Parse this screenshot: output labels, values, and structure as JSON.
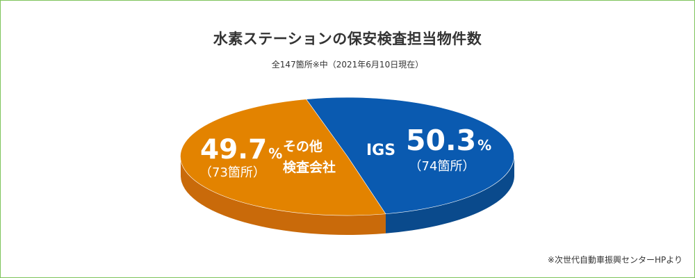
{
  "chart_data": {
    "type": "pie",
    "title": "水素ステーションの保安検査担当物件数",
    "subtitle": "全147箇所※中（2021年6月10日現在）",
    "source": "※次世代自動車振興センターHPより",
    "slices": [
      {
        "label_lines": [
          "その他",
          "検査会社"
        ],
        "percent": 49.7,
        "percent_text": "49.7",
        "unit": "%",
        "count_text": "（73箇所）",
        "count": 73,
        "color": "#e38300",
        "side_color": "#c96a0a"
      },
      {
        "label_lines": [
          "IGS"
        ],
        "percent": 50.3,
        "percent_text": "50.3",
        "unit": "%",
        "count_text": "（74箇所）",
        "count": 74,
        "color": "#0a5ab0",
        "side_color": "#0a4a8c"
      }
    ]
  },
  "colors": {
    "border": "#7dc35b",
    "text": "#333333"
  }
}
